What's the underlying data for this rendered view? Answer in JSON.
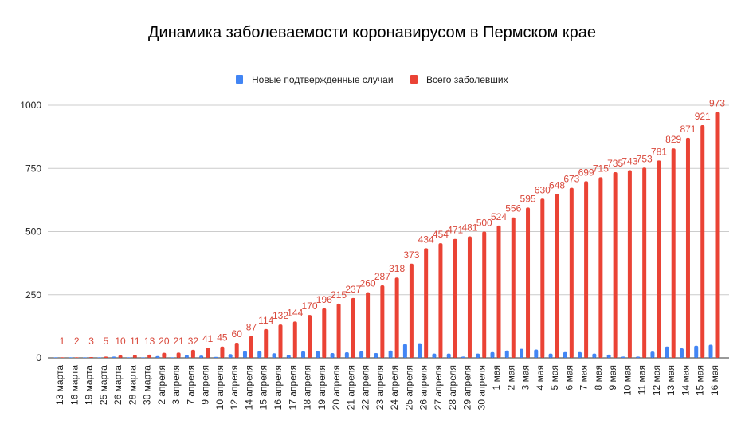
{
  "chart_data": {
    "type": "bar",
    "title": "Динамика заболеваемости коронавирусом в Пермском крае",
    "xlabel": "",
    "ylabel": "",
    "ylim": [
      0,
      1000
    ],
    "yticks": [
      "0",
      "250",
      "500",
      "750",
      "1000"
    ],
    "grid": true,
    "legend_position": "top",
    "categories": [
      "13 марта",
      "16 марта",
      "19 марта",
      "25 марта",
      "26 марта",
      "28 марта",
      "30 марта",
      "2 апреля",
      "3 апреля",
      "7 апреля",
      "9 апреля",
      "10 апреля",
      "12 апреля",
      "14 апреля",
      "15 апреля",
      "16 апреля",
      "17 апреля",
      "18 апреля",
      "19 апреля",
      "20 апреля",
      "21 апреля",
      "22 апреля",
      "23 апреля",
      "24 апреля",
      "25 апреля",
      "26 апреля",
      "27 апреля",
      "28 апреля",
      "29 апреля",
      "30 апреля",
      "1 мая",
      "2 мая",
      "3 мая",
      "4 мая",
      "5 мая",
      "6 мая",
      "7 мая",
      "8 мая",
      "9 мая",
      "10 мая",
      "11 мая",
      "12 мая",
      "13 мая",
      "14 мая",
      "15 мая",
      "16 мая"
    ],
    "series": [
      {
        "name": "Новые подтвержденные случаи",
        "color": "#4285f4",
        "values": [
          1,
          1,
          1,
          2,
          5,
          1,
          2,
          7,
          1,
          11,
          9,
          4,
          15,
          27,
          27,
          18,
          12,
          26,
          26,
          19,
          22,
          26,
          19,
          29,
          55,
          58,
          17,
          17,
          5,
          17,
          23,
          29,
          36,
          33,
          17,
          23,
          23,
          17,
          13,
          5,
          5,
          25,
          45,
          38,
          48,
          52
        ]
      },
      {
        "name": "Всего заболевших",
        "color": "#ea4335",
        "values": [
          1,
          2,
          3,
          5,
          10,
          11,
          13,
          20,
          21,
          32,
          41,
          45,
          60,
          87,
          114,
          132,
          144,
          170,
          196,
          215,
          237,
          260,
          287,
          318,
          373,
          434,
          454,
          471,
          481,
          500,
          524,
          556,
          595,
          630,
          648,
          673,
          699,
          715,
          735,
          743,
          753,
          781,
          829,
          871,
          921,
          973
        ]
      }
    ]
  }
}
